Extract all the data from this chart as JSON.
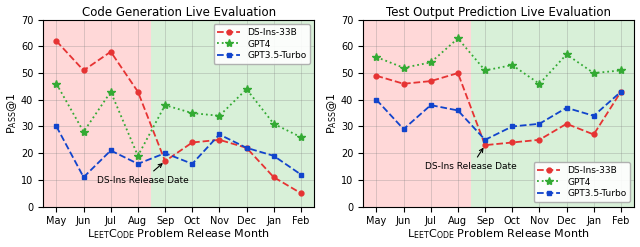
{
  "months": [
    "May",
    "Jun",
    "Jul",
    "Aug",
    "Sep",
    "Oct",
    "Nov",
    "Dec",
    "Jan",
    "Feb"
  ],
  "left_title": "Code Generation Live Evaluation",
  "right_title": "Test Output Prediction Live Evaluation",
  "ylim": [
    0,
    70
  ],
  "yticks": [
    0,
    10,
    20,
    30,
    40,
    50,
    60,
    70
  ],
  "split_month_idx": 4,
  "left": {
    "ds_ins": [
      62,
      51,
      58,
      43,
      17,
      24,
      25,
      22,
      11,
      5
    ],
    "gpt4": [
      46,
      28,
      43,
      19,
      38,
      35,
      34,
      44,
      31,
      26
    ],
    "gpt35": [
      30,
      11,
      21,
      16,
      20,
      16,
      27,
      22,
      19,
      12
    ]
  },
  "right": {
    "ds_ins": [
      49,
      46,
      47,
      50,
      23,
      24,
      25,
      31,
      27,
      43
    ],
    "gpt4": [
      56,
      52,
      54,
      63,
      51,
      53,
      46,
      57,
      50,
      51
    ],
    "gpt35": [
      40,
      29,
      38,
      36,
      25,
      30,
      31,
      37,
      34,
      43
    ]
  },
  "colors": {
    "ds_ins": "#e63333",
    "gpt4": "#33aa33",
    "gpt35": "#1144cc"
  },
  "bg_pink": "#ffd8d8",
  "bg_green": "#d8f0d8",
  "legend_left_loc": "upper right",
  "legend_right_loc": "lower right"
}
